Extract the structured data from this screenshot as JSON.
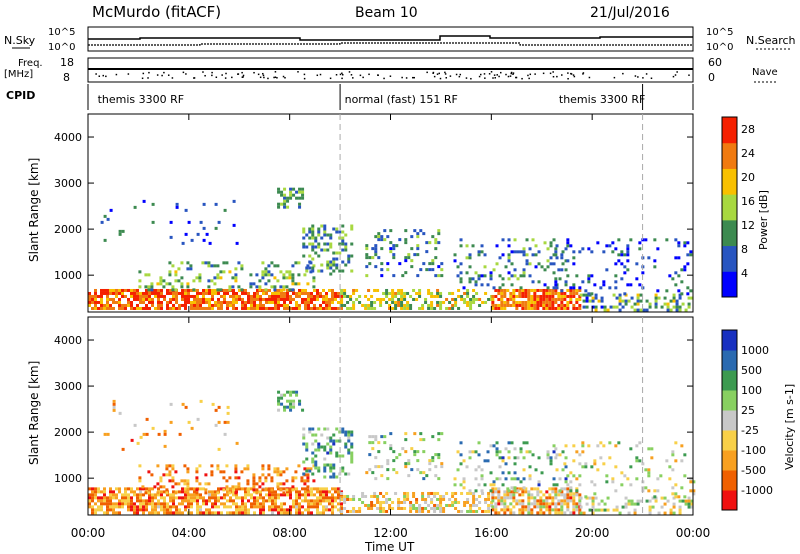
{
  "header": {
    "station": "McMurdo (fitACF)",
    "beam": "Beam 10",
    "date": "21/Jul/2016"
  },
  "top_panels": {
    "nsky_label": "N.Sky",
    "nsky_ticks": [
      "10^5",
      "10^0"
    ],
    "nsearch_label": "N.Search",
    "nsearch_ticks": [
      "10^5",
      "10^0"
    ],
    "freq_label_1": "Freq.",
    "freq_label_2": "[MHz]",
    "freq_ticks": [
      "18",
      "8"
    ],
    "nave_label": "Nave",
    "nave_ticks": [
      "60",
      "0"
    ],
    "cpid_label": "CPID",
    "cpid_segments": [
      {
        "label": "themis 3300 RF",
        "start_hour": 0,
        "end_hour": 10
      },
      {
        "label": "normal (fast) 151 RF",
        "start_hour": 10,
        "end_hour": 22
      },
      {
        "label": "themis 3300 RF",
        "start_hour": 22,
        "end_hour": 24
      }
    ],
    "cpid_label_positions_hour": [
      0.3,
      10.1,
      18.6
    ]
  },
  "chart_data": [
    {
      "type": "heatmap",
      "name": "power",
      "ylabel": "Slant Range [km]",
      "yticks": [
        "1000",
        "2000",
        "3000",
        "4000"
      ],
      "ylim": [
        200,
        4500
      ],
      "xlim_hours": [
        0,
        24
      ],
      "colorbar_label": "Power [dB]",
      "colorbar_ticks": [
        "4",
        "8",
        "12",
        "16",
        "20",
        "24",
        "28"
      ],
      "colorbar_range": [
        0,
        30
      ],
      "colors": [
        "#0000ff",
        "#2855c0",
        "#3c8a50",
        "#a8d840",
        "#f8c000",
        "#f07a10",
        "#f52000"
      ],
      "scatter_regions": [
        {
          "x": [
            0.0,
            10.0
          ],
          "y": [
            250,
            700
          ],
          "density": 0.75,
          "level": [
            0.65,
            1.0
          ]
        },
        {
          "x": [
            10.0,
            16.0
          ],
          "y": [
            250,
            700
          ],
          "density": 0.45,
          "level": [
            0.35,
            0.75
          ]
        },
        {
          "x": [
            16.0,
            19.5
          ],
          "y": [
            250,
            700
          ],
          "density": 0.8,
          "level": [
            0.6,
            1.0
          ]
        },
        {
          "x": [
            19.5,
            24.0
          ],
          "y": [
            250,
            600
          ],
          "density": 0.4,
          "level": [
            0.1,
            0.6
          ]
        },
        {
          "x": [
            2.0,
            9.0
          ],
          "y": [
            700,
            1300
          ],
          "density": 0.25,
          "level": [
            0.2,
            0.6
          ]
        },
        {
          "x": [
            8.5,
            10.5
          ],
          "y": [
            1000,
            2100
          ],
          "density": 0.35,
          "level": [
            0.15,
            0.55
          ]
        },
        {
          "x": [
            7.5,
            8.5
          ],
          "y": [
            2500,
            2900
          ],
          "density": 0.4,
          "level": [
            0.2,
            0.5
          ]
        },
        {
          "x": [
            11.0,
            14.0
          ],
          "y": [
            1000,
            2000
          ],
          "density": 0.18,
          "level": [
            0.1,
            0.5
          ]
        },
        {
          "x": [
            14.5,
            19.0
          ],
          "y": [
            700,
            1800
          ],
          "density": 0.18,
          "level": [
            0.1,
            0.5
          ]
        },
        {
          "x": [
            18.5,
            24.0
          ],
          "y": [
            600,
            1800
          ],
          "density": 0.12,
          "level": [
            0.0,
            0.4
          ]
        },
        {
          "x": [
            0.5,
            6.0
          ],
          "y": [
            1600,
            2700
          ],
          "density": 0.04,
          "level": [
            0.1,
            0.4
          ]
        }
      ]
    },
    {
      "type": "heatmap",
      "name": "velocity",
      "ylabel": "Slant Range [km]",
      "yticks": [
        "1000",
        "2000",
        "3000",
        "4000"
      ],
      "ylim": [
        200,
        4500
      ],
      "xlim_hours": [
        0,
        24
      ],
      "colorbar_label": "Velocity [m s-1]",
      "colorbar_ticks": [
        "1000",
        "500",
        "100",
        "25",
        "-25",
        "-100",
        "-500",
        "-1000"
      ],
      "colors": [
        "#f01010",
        "#f06000",
        "#f8a020",
        "#f8d048",
        "#c8c8c8",
        "#88d060",
        "#3c9a50",
        "#2a6ab0",
        "#1830c0"
      ],
      "scatter_regions": [
        {
          "x": [
            0.0,
            10.0
          ],
          "y": [
            250,
            800
          ],
          "density": 0.7,
          "level": [
            0.05,
            0.45
          ]
        },
        {
          "x": [
            10.0,
            16.0
          ],
          "y": [
            250,
            700
          ],
          "density": 0.45,
          "level": [
            0.2,
            0.6
          ]
        },
        {
          "x": [
            16.0,
            19.5
          ],
          "y": [
            250,
            800
          ],
          "density": 0.7,
          "level": [
            0.1,
            0.6
          ]
        },
        {
          "x": [
            19.5,
            24.0
          ],
          "y": [
            250,
            600
          ],
          "density": 0.35,
          "level": [
            0.3,
            0.7
          ]
        },
        {
          "x": [
            2.0,
            9.0
          ],
          "y": [
            700,
            1300
          ],
          "density": 0.25,
          "level": [
            0.05,
            0.4
          ]
        },
        {
          "x": [
            8.5,
            10.5
          ],
          "y": [
            1000,
            2100
          ],
          "density": 0.35,
          "level": [
            0.5,
            0.9
          ]
        },
        {
          "x": [
            7.5,
            8.5
          ],
          "y": [
            2500,
            2900
          ],
          "density": 0.4,
          "level": [
            0.5,
            0.9
          ]
        },
        {
          "x": [
            11.0,
            14.0
          ],
          "y": [
            1000,
            2000
          ],
          "density": 0.18,
          "level": [
            0.3,
            0.8
          ]
        },
        {
          "x": [
            14.5,
            19.0
          ],
          "y": [
            700,
            1800
          ],
          "density": 0.18,
          "level": [
            0.4,
            0.9
          ]
        },
        {
          "x": [
            18.5,
            24.0
          ],
          "y": [
            600,
            1800
          ],
          "density": 0.12,
          "level": [
            0.3,
            0.7
          ]
        },
        {
          "x": [
            0.5,
            6.0
          ],
          "y": [
            1600,
            2700
          ],
          "density": 0.04,
          "level": [
            0.1,
            0.5
          ]
        }
      ]
    }
  ],
  "xaxis": {
    "ticks": [
      "00:00",
      "04:00",
      "08:00",
      "12:00",
      "16:00",
      "20:00",
      "00:00"
    ],
    "label": "Time UT"
  }
}
